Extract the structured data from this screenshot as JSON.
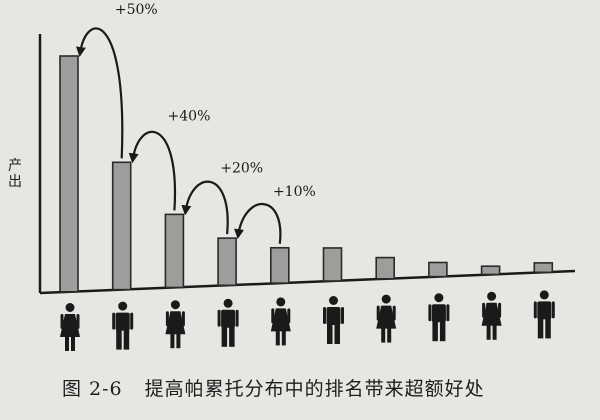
{
  "caption": {
    "figure_label": "图 2-6",
    "title": "提高帕累托分布中的排名带来超额好处"
  },
  "chart_data": {
    "type": "bar",
    "ylabel": "产出",
    "xlabel": "",
    "categories": [
      "1",
      "2",
      "3",
      "4",
      "5",
      "6",
      "7",
      "8",
      "9",
      "10"
    ],
    "values": [
      100,
      54,
      31,
      20,
      15,
      14,
      9,
      6,
      3.5,
      4
    ],
    "ylim": [
      0,
      100
    ],
    "grid": false,
    "annotations": [
      {
        "label": "+50%",
        "from": 2,
        "to": 1
      },
      {
        "label": "+40%",
        "from": 3,
        "to": 2
      },
      {
        "label": "+20%",
        "from": 4,
        "to": 3
      },
      {
        "label": "+10%",
        "from": 5,
        "to": 4
      }
    ],
    "person_icons": [
      "woman",
      "man",
      "woman",
      "man",
      "woman",
      "man",
      "woman",
      "man",
      "woman",
      "man"
    ],
    "colors": {
      "bar_fill": "#9d9d9b",
      "bar_stroke": "#2a2a2a",
      "ink": "#1a1a1a"
    }
  }
}
